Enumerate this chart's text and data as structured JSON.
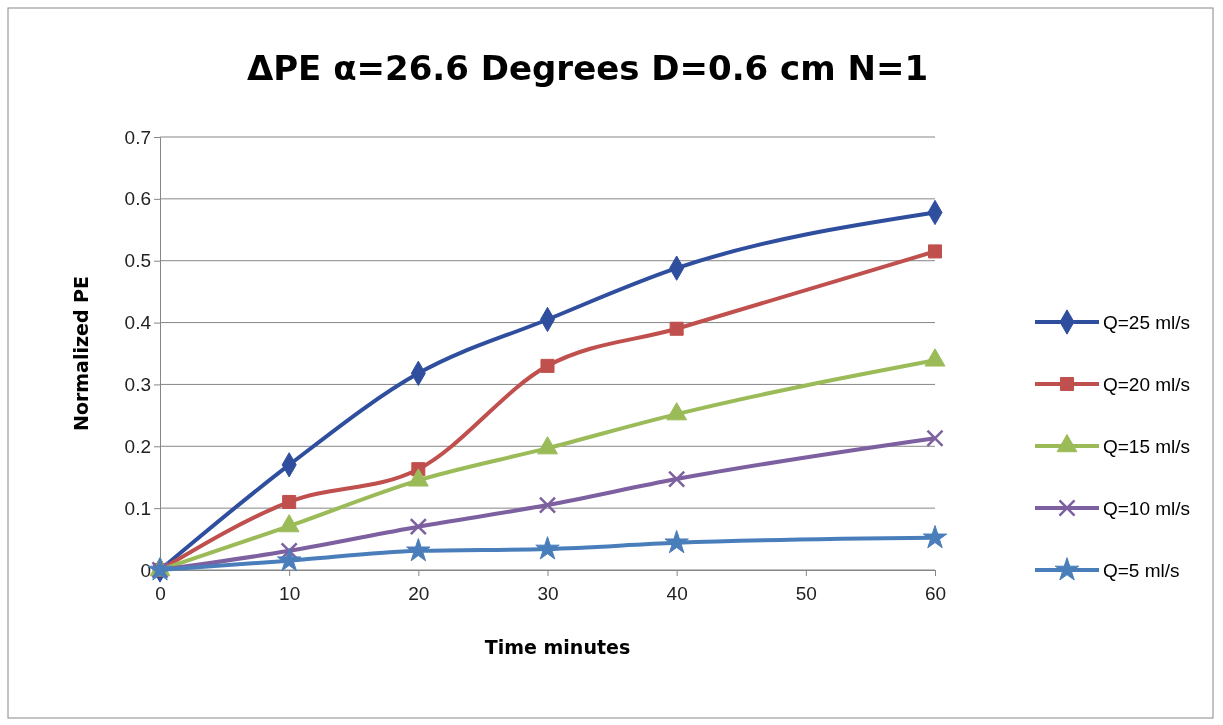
{
  "chart_data": {
    "type": "line",
    "title": "ΔPE α=26.6 Degrees D=0.6 cm N=1",
    "xlabel": "Time minutes",
    "ylabel": "Normalized PE",
    "x": [
      0,
      10,
      20,
      30,
      40,
      60
    ],
    "series": [
      {
        "name": "Q=25 ml/s",
        "color": "#2f4f9e",
        "marker": "diamond",
        "values": [
          0,
          0.17,
          0.318,
          0.405,
          0.488,
          0.578
        ]
      },
      {
        "name": "Q=20 ml/s",
        "color": "#c0504d",
        "marker": "square",
        "values": [
          0,
          0.11,
          0.163,
          0.33,
          0.39,
          0.515
        ]
      },
      {
        "name": "Q=15 ml/s",
        "color": "#9bbb59",
        "marker": "triangle",
        "values": [
          0,
          0.071,
          0.145,
          0.197,
          0.252,
          0.339
        ]
      },
      {
        "name": "Q=10 ml/s",
        "color": "#7d60a0",
        "marker": "cross",
        "values": [
          0,
          0.031,
          0.07,
          0.105,
          0.147,
          0.213
        ]
      },
      {
        "name": "Q=5 ml/s",
        "color": "#4a7ebb",
        "marker": "star",
        "values": [
          0,
          0.015,
          0.031,
          0.034,
          0.044,
          0.052
        ]
      }
    ],
    "xlim": [
      0,
      60
    ],
    "xticks": [
      0,
      10,
      20,
      30,
      40,
      50,
      60
    ],
    "ylim": [
      0,
      0.7
    ],
    "yticks": [
      0,
      0.1,
      0.2,
      0.3,
      0.4,
      0.5,
      0.6,
      0.7
    ],
    "grid": "y",
    "legend": "right",
    "line_style": "solid"
  }
}
